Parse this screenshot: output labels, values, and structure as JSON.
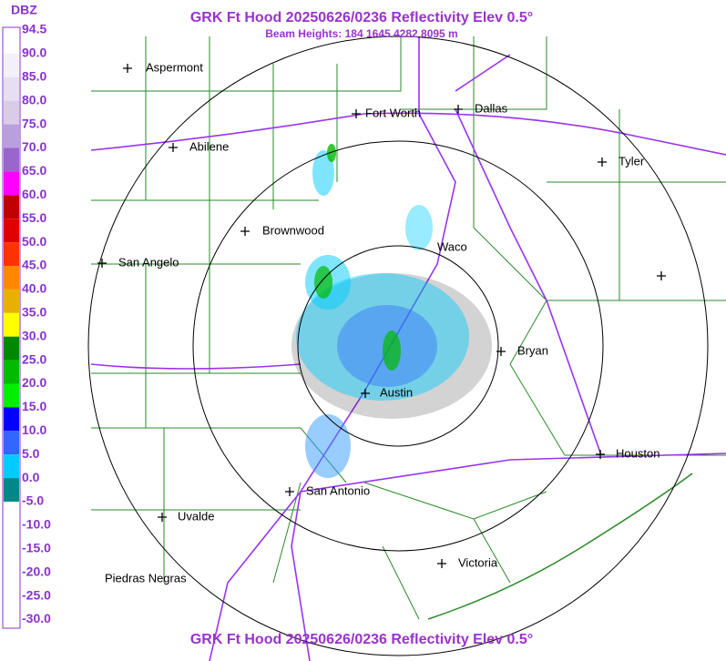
{
  "title": "GRK Ft Hood 20250626/0236 Reflectivity Elev 0.5°",
  "subtitle": "Beam Heights: 184 1645 4282 8095 m",
  "footer": "GRK Ft Hood 20250626/0236 Reflectivity Elev 0.5°",
  "legend": {
    "title": "DBZ",
    "labels": [
      "94.5",
      "90.0",
      "85.0",
      "80.0",
      "75.0",
      "70.0",
      "65.0",
      "60.0",
      "55.0",
      "50.0",
      "45.0",
      "40.0",
      "35.0",
      "30.0",
      "25.0",
      "20.0",
      "15.0",
      "10.0",
      "5.0",
      "0.0",
      "-5.0",
      "-10.0",
      "-15.0",
      "-20.0",
      "-25.0",
      "-30.0"
    ],
    "colors": [
      "#ffffff",
      "#f4f0fa",
      "#e6def2",
      "#d8cce8",
      "#b8a0dc",
      "#9966cc",
      "#ff00ff",
      "#c00000",
      "#e00000",
      "#ff3300",
      "#ff8800",
      "#e8b000",
      "#ffff00",
      "#008800",
      "#00bb00",
      "#00ee00",
      "#0000ff",
      "#3366ff",
      "#00ccff",
      "#008888",
      "#ffffff",
      "#ffffff",
      "#ffffff",
      "#ffffff",
      "#ffffff"
    ]
  },
  "cities": [
    "Aspermont",
    "Fort Worth",
    "Dallas",
    "Abilene",
    "Tyler",
    "Brownwood",
    "Waco",
    "San Angelo",
    "Bryan",
    "Austin",
    "Houston",
    "San Antonio",
    "Uvalde",
    "Piedras Negras",
    "Victoria"
  ]
}
